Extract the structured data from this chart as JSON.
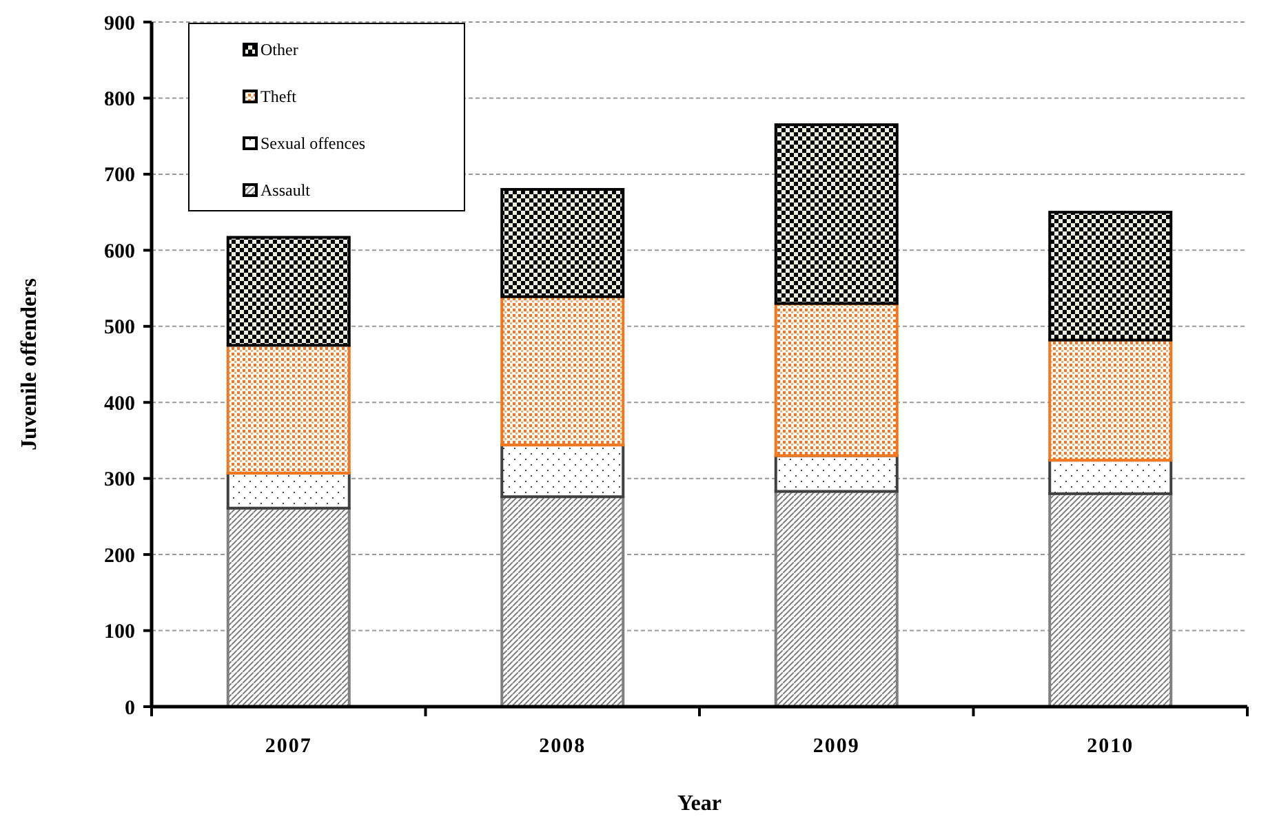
{
  "chart_data": {
    "type": "bar",
    "stacked": true,
    "xlabel": "Year",
    "ylabel": "Juvenile offenders",
    "categories": [
      "2007",
      "2008",
      "2009",
      "2010"
    ],
    "series": [
      {
        "name": "Assault",
        "color": "#808080",
        "values": [
          261,
          276,
          283,
          280
        ]
      },
      {
        "name": "Sexual offences",
        "color": "#404040",
        "values": [
          46,
          68,
          47,
          44
        ]
      },
      {
        "name": "Theft",
        "color": "#f07820",
        "values": [
          168,
          195,
          200,
          158
        ]
      },
      {
        "name": "Other",
        "color": "#000000",
        "values": [
          142,
          141,
          235,
          168
        ]
      }
    ],
    "ylim": [
      0,
      900
    ],
    "yticks": [
      0,
      100,
      200,
      300,
      400,
      500,
      600,
      700,
      800,
      900
    ],
    "grid": "y",
    "legend": "top left"
  }
}
